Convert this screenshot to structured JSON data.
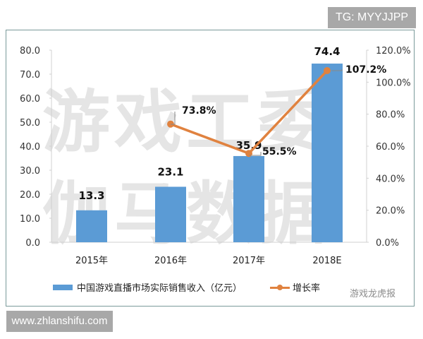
{
  "overlays": {
    "tg_badge": "TG: MYYJJPP",
    "url_badge": "www.zhlanshifu.com",
    "watermark_line1": "游戏工委",
    "watermark_line2": "伽马数据",
    "wechat_source": "游戏龙虎报"
  },
  "legend": {
    "bar_label": "中国游戏直播市场实际销售收入（亿元）",
    "line_label": "增长率"
  },
  "colors": {
    "bar": "#5b9bd5",
    "line": "#e0823f"
  },
  "chart_data": {
    "type": "bar+line",
    "title": "",
    "categories": [
      "2015年",
      "2016年",
      "2017年",
      "2018E"
    ],
    "series": [
      {
        "name": "中国游戏直播市场实际销售收入（亿元）",
        "type": "bar",
        "axis": "left",
        "values": [
          13.3,
          23.1,
          35.9,
          74.4
        ],
        "labels": [
          "13.3",
          "23.1",
          "35.9",
          "74.4"
        ]
      },
      {
        "name": "增长率",
        "type": "line",
        "axis": "right",
        "values": [
          null,
          73.8,
          55.5,
          107.2
        ],
        "labels": [
          "",
          "73.8%",
          "55.5%",
          "107.2%"
        ]
      }
    ],
    "left_axis": {
      "ylim": [
        0,
        80
      ],
      "ticks": [
        "0.0",
        "10.0",
        "20.0",
        "30.0",
        "40.0",
        "50.0",
        "60.0",
        "70.0",
        "80.0"
      ]
    },
    "right_axis": {
      "ylim": [
        0,
        120
      ],
      "ticks": [
        "0.0%",
        "20.0%",
        "40.0%",
        "60.0%",
        "80.0%",
        "100.0%",
        "120.0%"
      ]
    },
    "xlabel": "",
    "ylabel": "",
    "grid": false,
    "legend_position": "bottom"
  }
}
